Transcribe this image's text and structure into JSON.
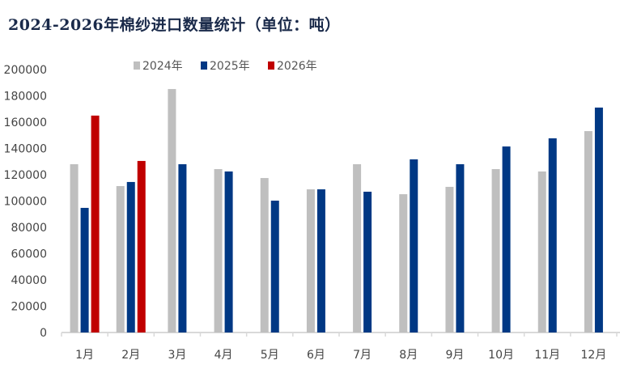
{
  "chart_data": {
    "type": "bar",
    "title": "2024-2026年棉纱进口数量统计（单位：吨）",
    "xlabel": "",
    "ylabel": "",
    "ylim": [
      0,
      200000
    ],
    "yticks": [
      0,
      20000,
      40000,
      60000,
      80000,
      100000,
      120000,
      140000,
      160000,
      180000,
      200000
    ],
    "grid": false,
    "legend_position": "top",
    "categories": [
      "1月",
      "2月",
      "3月",
      "4月",
      "5月",
      "6月",
      "7月",
      "8月",
      "9月",
      "10月",
      "11月",
      "12月"
    ],
    "series": [
      {
        "name": "2024年",
        "color": "#bfbfbf",
        "values": [
          128000,
          111400,
          185200,
          124300,
          117500,
          108900,
          128000,
          105200,
          110800,
          124300,
          122500,
          153200
        ]
      },
      {
        "name": "2025年",
        "color": "#003884",
        "values": [
          94800,
          114500,
          128000,
          122500,
          100300,
          108900,
          107100,
          131700,
          128000,
          141500,
          147700,
          171100
        ]
      },
      {
        "name": "2026年",
        "color": "#c00000",
        "values": [
          165000,
          130500,
          null,
          null,
          null,
          null,
          null,
          null,
          null,
          null,
          null,
          null
        ]
      }
    ]
  }
}
